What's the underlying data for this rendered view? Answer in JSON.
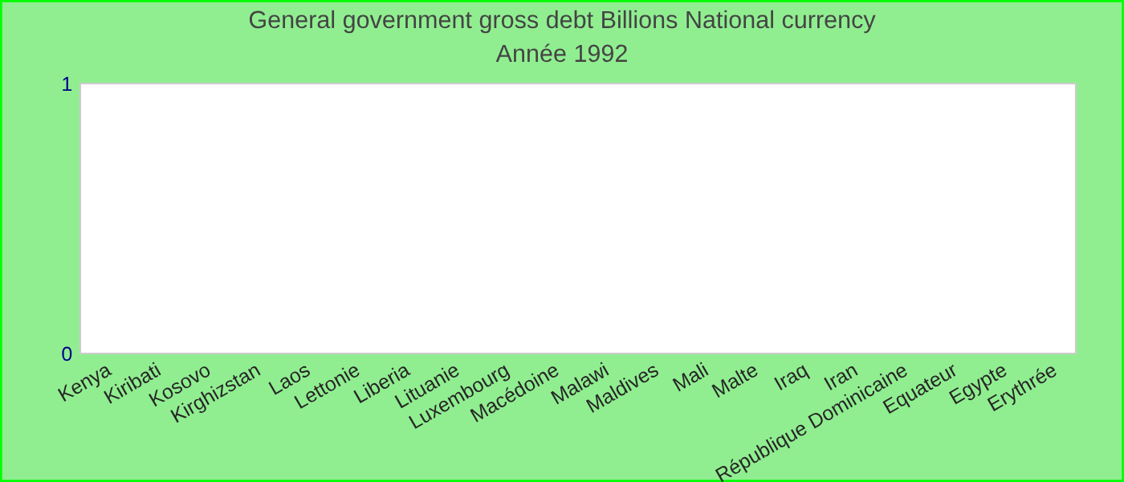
{
  "chart_data": {
    "type": "bar",
    "title": "General government gross debt Billions National currency",
    "subtitle": "Année 1992",
    "categories": [
      "Kenya",
      "Kiribati",
      "Kosovo",
      "Kirghizstan",
      "Laos",
      "Lettonie",
      "Liberia",
      "Lituanie",
      "Luxembourg",
      "Macédoine",
      "Malawi",
      "Maldives",
      "Mali",
      "Malte",
      "Iraq",
      "Iran",
      "République Dominicaine",
      "Equateur",
      "Egypte",
      "Erythrée"
    ],
    "values": [
      null,
      null,
      null,
      null,
      null,
      null,
      null,
      null,
      null,
      null,
      null,
      null,
      null,
      null,
      null,
      null,
      null,
      null,
      null,
      null
    ],
    "ylim": [
      0,
      1
    ],
    "yticks": [
      0,
      1
    ],
    "grid": false,
    "legend": false
  }
}
